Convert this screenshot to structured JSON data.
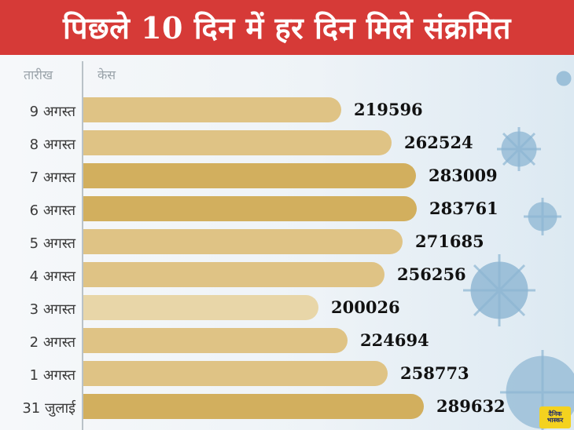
{
  "header": {
    "title": "पिछले 10 दिन में हर दिन मिले संक्रमित"
  },
  "columns": {
    "date": "तारीख",
    "cases": "केस"
  },
  "chart_data": {
    "type": "bar",
    "orientation": "horizontal",
    "title": "पिछले 10 दिन में हर दिन मिले संक्रमित",
    "categories": [
      "9 अगस्त",
      "8 अगस्त",
      "7 अगस्त",
      "6 अगस्त",
      "5 अगस्त",
      "4 अगस्त",
      "3 अगस्त",
      "2 अगस्त",
      "1 अगस्त",
      "31 जुलाई"
    ],
    "values": [
      219596,
      262524,
      283009,
      283761,
      271685,
      256256,
      200026,
      224694,
      258773,
      289632
    ],
    "value_labels": [
      "219596",
      "262524",
      "283009",
      "283761",
      "271685",
      "256256",
      "200026",
      "224694",
      "258773",
      "289632"
    ],
    "xlabel": "तारीख",
    "ylabel": "केस",
    "grid": false,
    "legend": "none"
  },
  "colors": {
    "header": "#d63a37",
    "bar_dark": "#d2af5e",
    "bar_mid": "#dfc385",
    "bar_light": "#e8d6a8",
    "virus": "#8db6d3"
  },
  "logo": {
    "line1": "दैनिक",
    "line2": "भास्कर"
  }
}
